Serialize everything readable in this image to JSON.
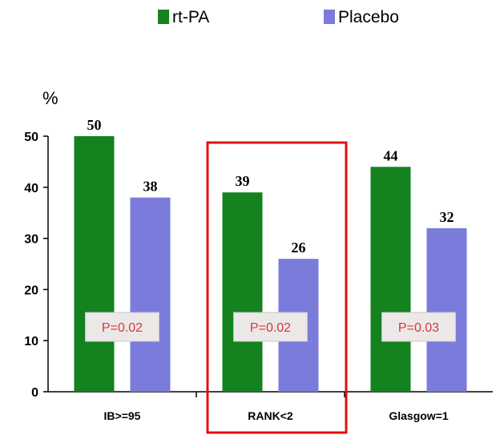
{
  "chart_data": {
    "type": "bar",
    "categories": [
      "IB>=95",
      "RANK<2",
      "Glasgow=1"
    ],
    "series": [
      {
        "name": "rt-PA",
        "values": [
          50,
          39,
          44
        ],
        "color": "#14821e"
      },
      {
        "name": "Placebo",
        "values": [
          38,
          26,
          32
        ],
        "color": "#7b7bdb"
      }
    ],
    "ylabel": "%",
    "ylim": [
      0,
      50
    ],
    "yticks": [
      0,
      10,
      20,
      30,
      40,
      50
    ],
    "p_values": [
      "P=0.02",
      "P=0.02",
      "P=0.03"
    ],
    "highlighted_category": "RANK<2",
    "highlight_color": "#e01010",
    "legend_position": "top"
  }
}
